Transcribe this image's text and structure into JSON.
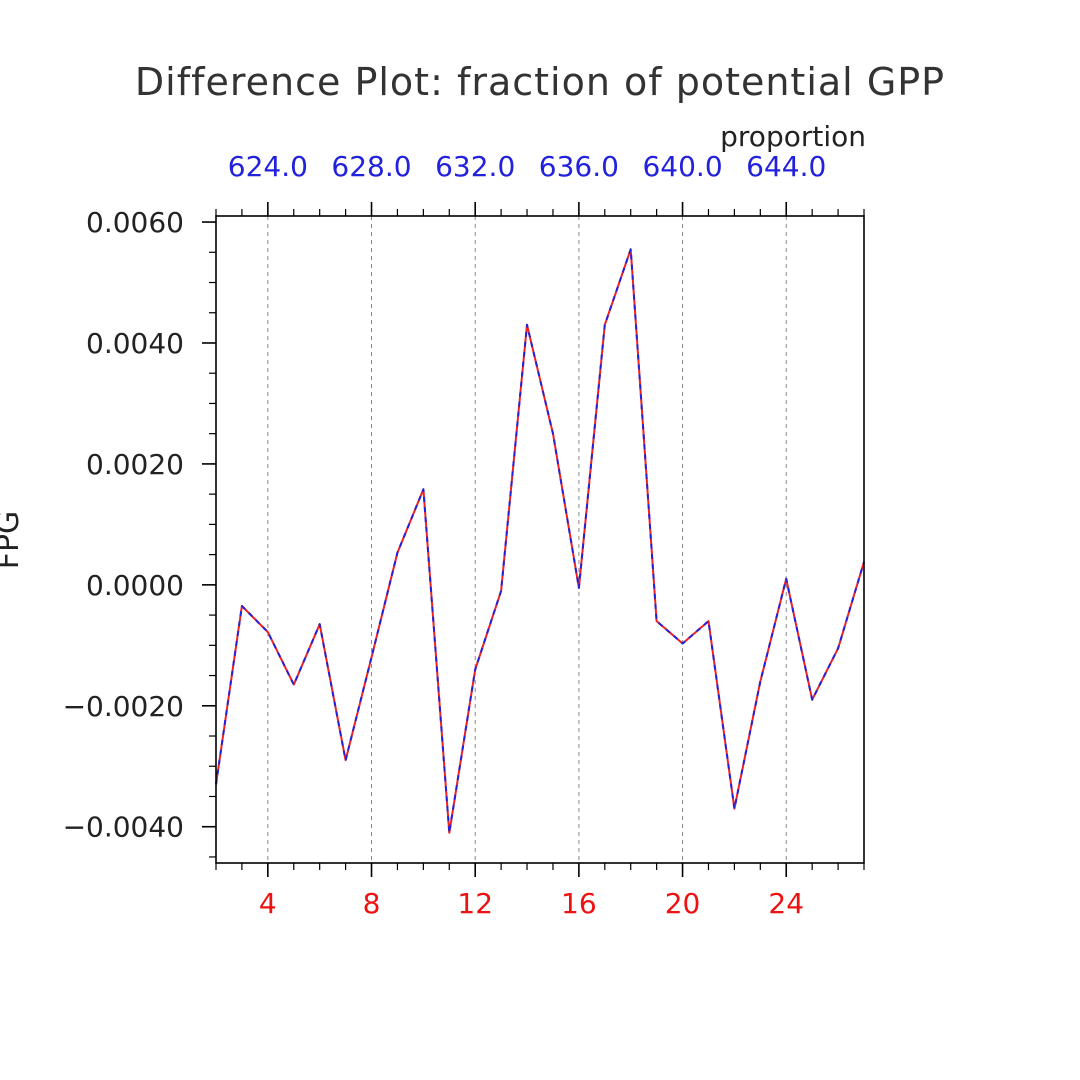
{
  "chart_data": {
    "type": "line",
    "title": "Difference Plot: fraction of potential GPP",
    "units_label": "proportion",
    "ylabel": "FPG",
    "xlim": [
      2,
      27
    ],
    "ylim": [
      -0.0046,
      0.0061
    ],
    "y_ticks": [
      -0.004,
      -0.002,
      0.0,
      0.002,
      0.004,
      0.006
    ],
    "y_tick_labels": [
      "−0.0040",
      "−0.0020",
      "0.0000",
      "0.0020",
      "0.0040",
      "0.0060"
    ],
    "x_ticks": [
      4,
      8,
      12,
      16,
      20,
      24
    ],
    "x_tick_labels": [
      "4",
      "8",
      "12",
      "16",
      "20",
      "24"
    ],
    "top_axis_labels": [
      "624.0",
      "628.0",
      "632.0",
      "636.0",
      "640.0",
      "644.0"
    ],
    "grid": "vertical-dashed",
    "series": [
      {
        "color": "#ee2222",
        "style": "solid",
        "x": [
          2,
          3,
          4,
          5,
          6,
          7,
          8,
          9,
          10,
          11,
          12,
          13,
          14,
          15,
          16,
          17,
          18,
          19,
          20,
          21,
          22,
          23,
          24,
          25,
          26,
          27
        ],
        "values": [
          -0.0033,
          -0.00035,
          -0.00078,
          -0.00165,
          -0.00065,
          -0.0029,
          -0.0012,
          0.00053,
          0.00158,
          -0.0041,
          -0.0014,
          -0.0001,
          0.0043,
          0.0025,
          -5e-05,
          0.0043,
          0.00555,
          -0.0006,
          -0.00097,
          -0.0006,
          -0.0037,
          -0.0016,
          0.0001,
          -0.0019,
          -0.00105,
          0.00038
        ]
      },
      {
        "color": "#2222dd",
        "style": "dashed",
        "x": [
          2,
          3,
          4,
          5,
          6,
          7,
          8,
          9,
          10,
          11,
          12,
          13,
          14,
          15,
          16,
          17,
          18,
          19,
          20,
          21,
          22,
          23,
          24,
          25,
          26,
          27
        ],
        "values": [
          -0.0033,
          -0.00035,
          -0.00078,
          -0.00165,
          -0.00065,
          -0.0029,
          -0.0012,
          0.00053,
          0.00158,
          -0.0041,
          -0.0014,
          -0.0001,
          0.0043,
          0.0025,
          -5e-05,
          0.0043,
          0.00555,
          -0.0006,
          -0.00097,
          -0.0006,
          -0.0037,
          -0.0016,
          0.0001,
          -0.0019,
          -0.00105,
          0.00038
        ]
      }
    ]
  }
}
